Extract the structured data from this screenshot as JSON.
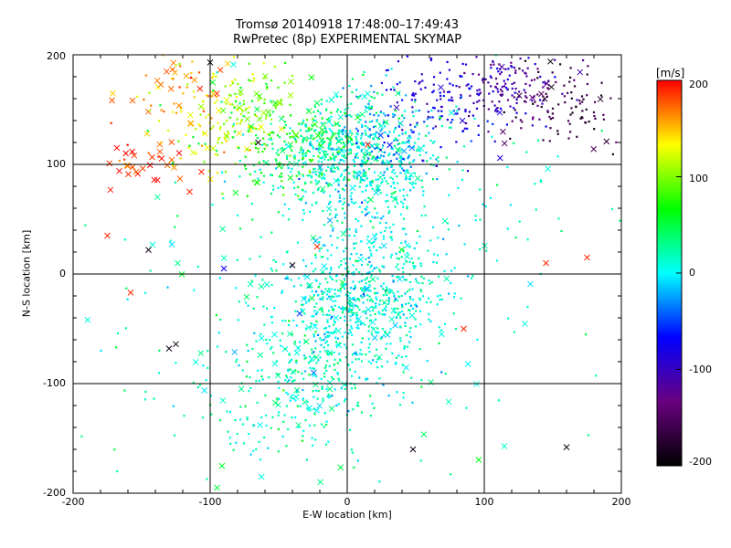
{
  "chart_data": {
    "type": "scatter",
    "title": "Tromsø 20140918  17:48:00–17:49:43",
    "subtitle": "RwPretec (8p) EXPERIMENTAL SKYMAP",
    "xlabel": "E-W location [km]",
    "ylabel": "N-S location [km]",
    "xlim": [
      -200,
      200
    ],
    "ylim": [
      -200,
      200
    ],
    "xticks": [
      "-200",
      "-100",
      "0",
      "100",
      "200"
    ],
    "yticks": [
      "-200",
      "-100",
      "0",
      "100",
      "200"
    ],
    "gridlines_x": [
      -100,
      0,
      100
    ],
    "gridlines_y": [
      -100,
      0,
      100
    ],
    "grid": true,
    "markers": [
      "dot",
      "x"
    ],
    "colorbar": {
      "label": "[m/s]",
      "range": [
        -200,
        200
      ],
      "ticks": [
        "200",
        "100",
        "0",
        "-100",
        "-200"
      ],
      "colormap": [
        "#000000",
        "#6a0080",
        "#0000ff",
        "#00ffff",
        "#00ff00",
        "#ffff00",
        "#ff0000"
      ],
      "placement": "right"
    },
    "clusters": [
      {
        "center": [
          -148,
          102
        ],
        "spread": [
          15,
          12
        ],
        "count": 35,
        "value": 185,
        "xfrac": 0.85
      },
      {
        "center": [
          -125,
          170
        ],
        "spread": [
          24,
          18
        ],
        "count": 50,
        "value": 160,
        "xfrac": 0.45
      },
      {
        "center": [
          -95,
          140
        ],
        "spread": [
          20,
          25
        ],
        "count": 90,
        "value": 130,
        "xfrac": 0.15
      },
      {
        "center": [
          -65,
          155
        ],
        "spread": [
          20,
          25
        ],
        "count": 110,
        "value": 100,
        "xfrac": 0.12
      },
      {
        "center": [
          -40,
          110
        ],
        "spread": [
          25,
          20
        ],
        "count": 170,
        "value": 60,
        "xfrac": 0.1
      },
      {
        "center": [
          10,
          100
        ],
        "spread": [
          28,
          22
        ],
        "count": 380,
        "value": 10,
        "xfrac": 0.06
      },
      {
        "center": [
          30,
          120
        ],
        "spread": [
          22,
          18
        ],
        "count": 120,
        "value": -25,
        "xfrac": 0.06
      },
      {
        "center": [
          75,
          160
        ],
        "spread": [
          25,
          22
        ],
        "count": 150,
        "value": -80,
        "xfrac": 0.06
      },
      {
        "center": [
          120,
          170
        ],
        "spread": [
          20,
          18
        ],
        "count": 120,
        "value": -115,
        "xfrac": 0.06
      },
      {
        "center": [
          160,
          155
        ],
        "spread": [
          22,
          22
        ],
        "count": 100,
        "value": -165,
        "xfrac": 0.05
      },
      {
        "center": [
          15,
          20
        ],
        "spread": [
          35,
          40
        ],
        "count": 250,
        "value": 5,
        "xfrac": 0.05
      },
      {
        "center": [
          10,
          -30
        ],
        "spread": [
          30,
          25
        ],
        "count": 450,
        "value": 8,
        "xfrac": 0.06
      },
      {
        "center": [
          -20,
          -80
        ],
        "spread": [
          30,
          25
        ],
        "count": 230,
        "value": 15,
        "xfrac": 0.1
      },
      {
        "center": [
          -55,
          -120
        ],
        "spread": [
          28,
          25
        ],
        "count": 110,
        "value": 20,
        "xfrac": 0.12
      },
      {
        "center": [
          5,
          130
        ],
        "spread": [
          30,
          20
        ],
        "count": 200,
        "value": 25,
        "xfrac": 0.08
      },
      {
        "center": [
          0,
          0
        ],
        "spread": [
          110,
          110
        ],
        "count": 280,
        "value": 20,
        "xfrac": 0.18
      }
    ],
    "outliers": [
      {
        "x": -175,
        "y": 35,
        "v": 190,
        "m": "x"
      },
      {
        "x": -158,
        "y": -17,
        "v": 190,
        "m": "x"
      },
      {
        "x": -145,
        "y": 22,
        "v": -190,
        "m": "x"
      },
      {
        "x": -125,
        "y": -64,
        "v": -190,
        "m": "x"
      },
      {
        "x": -130,
        "y": -68,
        "v": -190,
        "m": "x"
      },
      {
        "x": -115,
        "y": 75,
        "v": 190,
        "m": "x"
      },
      {
        "x": -90,
        "y": 5,
        "v": -70,
        "m": "x"
      },
      {
        "x": -40,
        "y": 8,
        "v": -190,
        "m": "x"
      },
      {
        "x": -22,
        "y": 25,
        "v": 190,
        "m": "x"
      },
      {
        "x": 15,
        "y": 118,
        "v": 190,
        "m": "x"
      },
      {
        "x": 48,
        "y": -160,
        "v": -190,
        "m": "x"
      },
      {
        "x": 85,
        "y": -50,
        "v": 190,
        "m": "x"
      },
      {
        "x": 145,
        "y": 10,
        "v": 190,
        "m": "x"
      },
      {
        "x": 175,
        "y": 15,
        "v": 190,
        "m": "x"
      },
      {
        "x": 160,
        "y": -158,
        "v": -190,
        "m": "x"
      },
      {
        "x": -65,
        "y": 120,
        "v": -190,
        "m": "x"
      },
      {
        "x": -100,
        "y": 193,
        "v": -190,
        "m": "x"
      },
      {
        "x": -95,
        "y": -195,
        "v": 50,
        "m": "x"
      }
    ]
  }
}
